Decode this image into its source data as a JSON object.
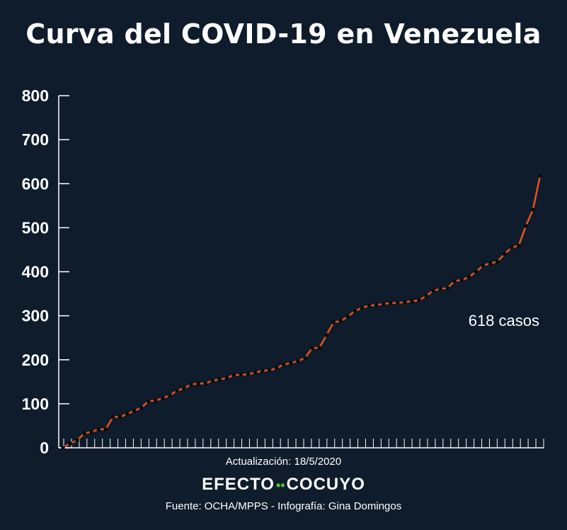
{
  "title": "Curva del COVID-19 en Venezuela",
  "annotation": "618 casos",
  "update_label": "Actualización: 18/5/2020",
  "brand": {
    "left": "EFECTO",
    "dots": "••",
    "right": "COCUYO"
  },
  "source_label": "Fuente: OCHA/MPPS - Infografía: Gina Domingos",
  "colors": {
    "background": "#0e1c2c",
    "line": "#e2511e",
    "marker": "#0b0b0b",
    "axis": "#ffffff"
  },
  "chart_data": {
    "type": "line",
    "title": "Curva del COVID-19 en Venezuela",
    "xlabel": "",
    "ylabel": "",
    "ylim": [
      0,
      800
    ],
    "yticks": [
      "0",
      "100",
      "200",
      "300",
      "400",
      "500",
      "600",
      "700",
      "800"
    ],
    "grid": false,
    "x_tick_count": 63,
    "values": [
      0,
      10,
      17,
      33,
      36,
      42,
      42,
      70,
      70,
      77,
      84,
      91,
      106,
      107,
      113,
      119,
      130,
      135,
      144,
      146,
      146,
      153,
      155,
      159,
      165,
      166,
      167,
      171,
      175,
      176,
      181,
      189,
      193,
      197,
      204,
      227,
      227,
      256,
      285,
      288,
      298,
      311,
      318,
      323,
      324,
      327,
      329,
      329,
      331,
      333,
      335,
      345,
      357,
      361,
      363,
      379,
      381,
      388,
      400,
      414,
      419,
      423,
      440,
      455,
      459,
      504,
      541,
      618
    ]
  }
}
